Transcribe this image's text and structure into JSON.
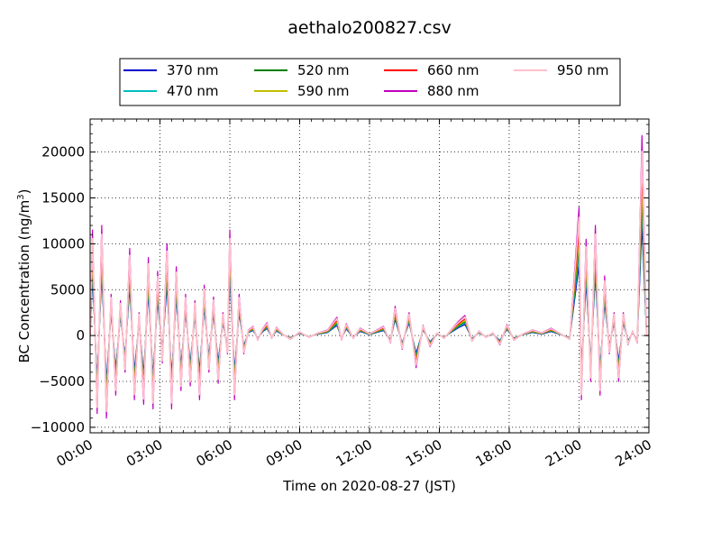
{
  "chart_data": {
    "type": "line",
    "title": "aethalo200827.csv",
    "xlabel": "Time on 2020-08-27 (JST)",
    "ylabel_main": "BC Concentration (ng/m",
    "ylabel_sup": "3",
    "ylabel_close": ")",
    "xlim_hours": [
      0,
      24
    ],
    "ylim": [
      -10600,
      23600
    ],
    "x_ticks": [
      "00:00",
      "03:00",
      "06:00",
      "09:00",
      "12:00",
      "15:00",
      "18:00",
      "21:00",
      "24:00"
    ],
    "y_ticks": [
      -10000,
      -5000,
      0,
      5000,
      10000,
      15000,
      20000
    ],
    "y_tick_labels": [
      "−10000",
      "−5000",
      "0",
      "5000",
      "10000",
      "15000",
      "20000"
    ],
    "grid": true,
    "legend_placement": "top-outside",
    "series": [
      {
        "name": "370 nm",
        "color": "#0000cc",
        "scale": 0.55
      },
      {
        "name": "470 nm",
        "color": "#00bfbf",
        "scale": 0.62
      },
      {
        "name": "520 nm",
        "color": "#007f00",
        "scale": 0.68
      },
      {
        "name": "590 nm",
        "color": "#bfbf00",
        "scale": 0.74
      },
      {
        "name": "660 nm",
        "color": "#ff0000",
        "scale": 0.82
      },
      {
        "name": "880 nm",
        "color": "#bf00bf",
        "scale": 1.0
      },
      {
        "name": "950 nm",
        "color": "#ffc0cb",
        "scale": 0.92
      }
    ],
    "envelope_880nm": {
      "x": [
        0.0,
        0.1,
        0.3,
        0.5,
        0.7,
        0.9,
        1.1,
        1.3,
        1.5,
        1.7,
        1.9,
        2.1,
        2.3,
        2.5,
        2.7,
        2.9,
        3.1,
        3.3,
        3.5,
        3.7,
        3.9,
        4.1,
        4.3,
        4.5,
        4.7,
        4.9,
        5.1,
        5.3,
        5.5,
        5.7,
        5.9,
        6.0,
        6.2,
        6.4,
        6.6,
        6.8,
        7.0,
        7.2,
        7.4,
        7.6,
        7.8,
        8.0,
        8.3,
        8.6,
        9.0,
        9.4,
        9.8,
        10.2,
        10.6,
        10.8,
        11.0,
        11.3,
        11.6,
        12.0,
        12.3,
        12.6,
        12.9,
        13.1,
        13.4,
        13.7,
        14.0,
        14.3,
        14.6,
        14.9,
        15.2,
        15.5,
        15.8,
        16.1,
        16.4,
        16.7,
        17.0,
        17.3,
        17.6,
        17.9,
        18.2,
        18.6,
        19.0,
        19.4,
        19.8,
        20.2,
        20.6,
        21.0,
        21.1,
        21.3,
        21.5,
        21.7,
        21.9,
        22.1,
        22.3,
        22.5,
        22.7,
        22.9,
        23.1,
        23.3,
        23.5,
        23.7,
        23.9,
        24.0
      ],
      "y": [
        0,
        11500,
        -8500,
        12000,
        -9000,
        4500,
        -6500,
        3800,
        -4000,
        9500,
        -7000,
        2500,
        -7500,
        8500,
        -8000,
        7000,
        -3000,
        10000,
        -8000,
        7500,
        -6000,
        4500,
        -5500,
        3800,
        -7000,
        5500,
        -4000,
        4200,
        -5200,
        2500,
        -2000,
        11500,
        -7000,
        4500,
        -2000,
        600,
        1000,
        -500,
        700,
        1400,
        -300,
        900,
        100,
        -400,
        400,
        -200,
        300,
        600,
        2000,
        -500,
        1300,
        -300,
        800,
        200,
        600,
        1000,
        -800,
        3200,
        -1500,
        2500,
        -3500,
        1100,
        -1200,
        300,
        -300,
        600,
        1500,
        2200,
        -600,
        500,
        -200,
        300,
        -1000,
        1200,
        -500,
        200,
        600,
        300,
        800,
        200,
        -400,
        14000,
        -7000,
        10500,
        -5000,
        12000,
        -6500,
        6500,
        -2000,
        2500,
        -5000,
        2500,
        -1000,
        500,
        -800,
        21800,
        0,
        0
      ]
    }
  },
  "legend": {
    "col1": [
      "370 nm",
      "470 nm"
    ],
    "col2": [
      "520 nm",
      "590 nm"
    ],
    "col3": [
      "660 nm",
      "880 nm"
    ],
    "col4": [
      "950 nm"
    ]
  }
}
